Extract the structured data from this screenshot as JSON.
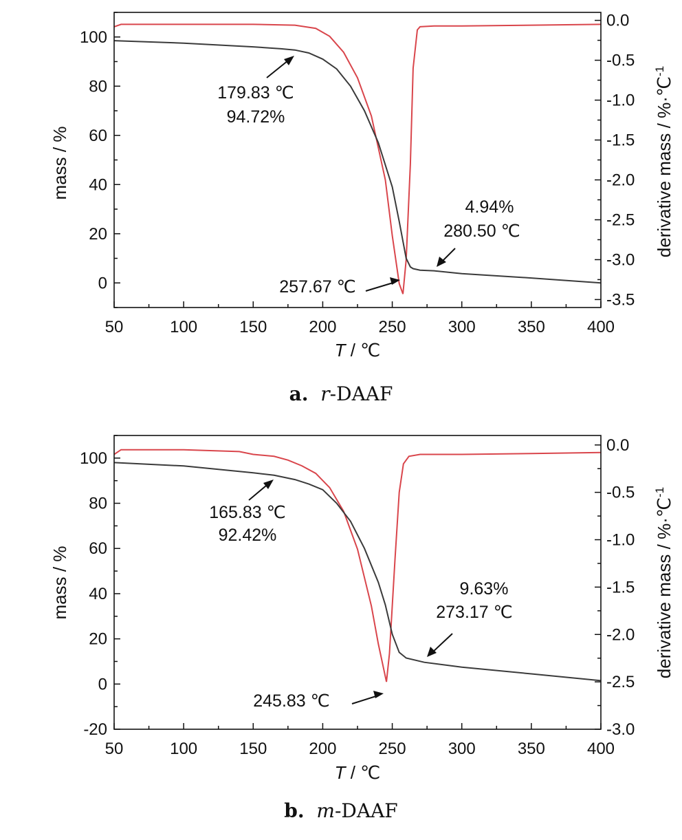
{
  "colors": {
    "mass": "#3a3a3a",
    "derivative": "#d9454b",
    "axis": "#111111"
  },
  "chart_data": [
    {
      "type": "line",
      "panel": "a",
      "xlabel_var": "T",
      "xlabel_unit": " / ℃",
      "ylabel": "mass / %",
      "y2label": "derivative mass / %·℃",
      "y2label_sup": "-1",
      "xlim": [
        50,
        400
      ],
      "ylim": [
        -10,
        110
      ],
      "y2lim": [
        -3.6,
        0.1
      ],
      "xticks": [
        50,
        100,
        150,
        200,
        250,
        300,
        350,
        400
      ],
      "yticks": [
        0,
        20,
        40,
        60,
        80,
        100
      ],
      "y2ticks": [
        0.0,
        -0.5,
        -1.0,
        -1.5,
        -2.0,
        -2.5,
        -3.0,
        -3.5
      ],
      "y2tick_labels": [
        "0.0",
        "-0.5",
        "-1.0",
        "-1.5",
        "-2.0",
        "-2.5",
        "-3.0",
        "-3.5"
      ],
      "series": [
        {
          "axis": "left",
          "x": [
            50,
            100,
            150,
            170,
            180,
            190,
            200,
            210,
            220,
            230,
            240,
            250,
            255,
            260,
            263,
            265,
            270,
            280,
            300,
            350,
            400
          ],
          "y": [
            98.5,
            97.5,
            96,
            95.2,
            94.7,
            93.5,
            91,
            87,
            80,
            70,
            57,
            39,
            25,
            10,
            6.5,
            5.8,
            5.2,
            4.94,
            3.8,
            2,
            0
          ]
        },
        {
          "axis": "right",
          "x": [
            50,
            55,
            100,
            150,
            180,
            195,
            205,
            215,
            225,
            235,
            245,
            250,
            255,
            257.67,
            260,
            263,
            265,
            268,
            270,
            280,
            300,
            350,
            400
          ],
          "y": [
            -0.08,
            -0.05,
            -0.05,
            -0.05,
            -0.06,
            -0.1,
            -0.2,
            -0.4,
            -0.72,
            -1.2,
            -2.0,
            -2.7,
            -3.3,
            -3.43,
            -3.0,
            -1.8,
            -0.6,
            -0.12,
            -0.08,
            -0.07,
            -0.07,
            -0.06,
            -0.05
          ]
        }
      ],
      "annotations": [
        {
          "line1": "179.83 ℃",
          "line2": "94.72%"
        },
        {
          "line1": "4.94%",
          "line2": "280.50 ℃"
        },
        {
          "line1": "257.67 ℃",
          "line2": ""
        }
      ],
      "caption_letter": "a.",
      "caption_prefix": "r",
      "caption_rest": "-DAAF"
    },
    {
      "type": "line",
      "panel": "b",
      "xlabel_var": "T",
      "xlabel_unit": " / ℃",
      "ylabel": "mass / %",
      "y2label": "derivative mass / %·℃",
      "y2label_sup": "-1",
      "xlim": [
        50,
        400
      ],
      "ylim": [
        -20,
        110
      ],
      "y2lim": [
        -3.0,
        0.1
      ],
      "xticks": [
        50,
        100,
        150,
        200,
        250,
        300,
        350,
        400
      ],
      "yticks": [
        -20,
        0,
        20,
        40,
        60,
        80,
        100
      ],
      "y2ticks": [
        0.0,
        -0.5,
        -1.0,
        -1.5,
        -2.0,
        -2.5,
        -3.0
      ],
      "y2tick_labels": [
        "0.0",
        "-0.5",
        "-1.0",
        "-1.5",
        "-2.0",
        "-2.5",
        "-3.0"
      ],
      "series": [
        {
          "axis": "left",
          "x": [
            50,
            100,
            150,
            165,
            180,
            190,
            200,
            210,
            220,
            230,
            240,
            245,
            250,
            255,
            260,
            273,
            300,
            350,
            400
          ],
          "y": [
            98,
            96.5,
            93.5,
            92.4,
            90.5,
            88.5,
            86,
            80,
            72,
            60,
            45,
            35,
            22,
            14,
            11.5,
            9.63,
            7.5,
            4.5,
            1.5
          ]
        },
        {
          "axis": "right",
          "x": [
            50,
            55,
            100,
            140,
            150,
            165,
            175,
            185,
            195,
            205,
            215,
            225,
            235,
            240,
            245.83,
            248,
            252,
            255,
            258,
            262,
            270,
            300,
            350,
            400
          ],
          "y": [
            -0.1,
            -0.05,
            -0.05,
            -0.07,
            -0.1,
            -0.12,
            -0.16,
            -0.22,
            -0.3,
            -0.45,
            -0.7,
            -1.1,
            -1.7,
            -2.1,
            -2.5,
            -2.2,
            -1.2,
            -0.5,
            -0.2,
            -0.12,
            -0.1,
            -0.1,
            -0.09,
            -0.08
          ]
        }
      ],
      "annotations": [
        {
          "line1": "165.83 ℃",
          "line2": "92.42%"
        },
        {
          "line1": "9.63%",
          "line2": "273.17 ℃"
        },
        {
          "line1": "245.83 ℃",
          "line2": ""
        }
      ],
      "caption_letter": "b.",
      "caption_prefix": "m",
      "caption_rest": "-DAAF"
    }
  ]
}
